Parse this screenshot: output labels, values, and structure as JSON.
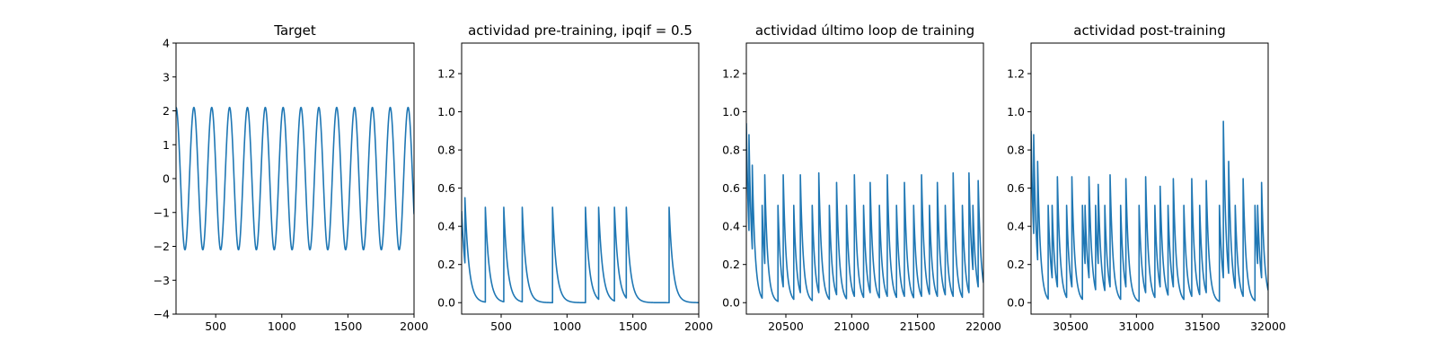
{
  "colors": {
    "series": "#1f77b4",
    "axes": "#000000",
    "background": "#ffffff"
  },
  "chart_data": [
    {
      "type": "line",
      "title": "Target",
      "xlabel": "",
      "ylabel": "",
      "xlim": [
        200,
        2000
      ],
      "ylim": [
        -4,
        4
      ],
      "xticks": [
        500,
        1000,
        1500,
        2000
      ],
      "xticklabels": [
        "500",
        "1000",
        "1500",
        "2000"
      ],
      "yticks": [
        -4,
        -3,
        -2,
        -1,
        0,
        1,
        2,
        3,
        4
      ],
      "yticklabels": [
        "−4",
        "−3",
        "−2",
        "−1",
        "0",
        "1",
        "2",
        "3",
        "4"
      ],
      "grid": false,
      "series": [
        {
          "kind": "sine",
          "amplitude": 2.1,
          "period": 135,
          "x_first_peak": 200,
          "x_start": 200,
          "x_end": 2000
        }
      ]
    },
    {
      "type": "line",
      "title": "actividad pre-training, ipqif = 0.5",
      "xlabel": "",
      "ylabel": "",
      "xlim": [
        200,
        2000
      ],
      "ylim": [
        -0.06,
        1.36
      ],
      "xticks": [
        500,
        1000,
        1500,
        2000
      ],
      "xticklabels": [
        "500",
        "1000",
        "1500",
        "2000"
      ],
      "yticks": [
        0.0,
        0.2,
        0.4,
        0.6,
        0.8,
        1.0,
        1.2
      ],
      "yticklabels": [
        "0.0",
        "0.2",
        "0.4",
        "0.6",
        "0.8",
        "1.0",
        "1.2"
      ],
      "grid": false,
      "series": [
        {
          "kind": "spikes",
          "x_start": 200,
          "x_end": 2000,
          "initial_value": 0.48,
          "decay": 30,
          "spikes": [
            {
              "x": 225,
              "y": 0.55
            },
            {
              "x": 380,
              "y": 0.5
            },
            {
              "x": 520,
              "y": 0.5
            },
            {
              "x": 660,
              "y": 0.5
            },
            {
              "x": 890,
              "y": 0.5
            },
            {
              "x": 1140,
              "y": 0.5
            },
            {
              "x": 1240,
              "y": 0.5
            },
            {
              "x": 1360,
              "y": 0.5
            },
            {
              "x": 1450,
              "y": 0.5
            },
            {
              "x": 1775,
              "y": 0.5
            }
          ]
        }
      ]
    },
    {
      "type": "line",
      "title": "actividad último loop de training",
      "xlabel": "",
      "ylabel": "",
      "xlim": [
        20200,
        22000
      ],
      "ylim": [
        -0.06,
        1.36
      ],
      "xticks": [
        20500,
        21000,
        21500,
        22000
      ],
      "xticklabels": [
        "20500",
        "21000",
        "21500",
        "22000"
      ],
      "yticks": [
        0.0,
        0.2,
        0.4,
        0.6,
        0.8,
        1.0,
        1.2
      ],
      "yticklabels": [
        "0.0",
        "0.2",
        "0.4",
        "0.6",
        "0.8",
        "1.0",
        "1.2"
      ],
      "grid": false,
      "series": [
        {
          "kind": "spikes",
          "x_start": 20200,
          "x_end": 22000,
          "initial_value": 0.94,
          "decay": 22,
          "spikes": [
            {
              "x": 20220,
              "y": 0.88
            },
            {
              "x": 20245,
              "y": 0.72
            },
            {
              "x": 20320,
              "y": 0.51
            },
            {
              "x": 20340,
              "y": 0.67
            },
            {
              "x": 20440,
              "y": 0.51
            },
            {
              "x": 20480,
              "y": 0.67
            },
            {
              "x": 20560,
              "y": 0.51
            },
            {
              "x": 20610,
              "y": 0.67
            },
            {
              "x": 20700,
              "y": 0.51
            },
            {
              "x": 20750,
              "y": 0.68
            },
            {
              "x": 20830,
              "y": 0.51
            },
            {
              "x": 20885,
              "y": 0.63
            },
            {
              "x": 20960,
              "y": 0.51
            },
            {
              "x": 21020,
              "y": 0.67
            },
            {
              "x": 21090,
              "y": 0.51
            },
            {
              "x": 21140,
              "y": 0.63
            },
            {
              "x": 21210,
              "y": 0.51
            },
            {
              "x": 21270,
              "y": 0.67
            },
            {
              "x": 21340,
              "y": 0.51
            },
            {
              "x": 21400,
              "y": 0.63
            },
            {
              "x": 21470,
              "y": 0.51
            },
            {
              "x": 21530,
              "y": 0.67
            },
            {
              "x": 21590,
              "y": 0.51
            },
            {
              "x": 21650,
              "y": 0.63
            },
            {
              "x": 21710,
              "y": 0.51
            },
            {
              "x": 21770,
              "y": 0.68
            },
            {
              "x": 21840,
              "y": 0.51
            },
            {
              "x": 21890,
              "y": 0.68
            },
            {
              "x": 21920,
              "y": 0.51
            },
            {
              "x": 21960,
              "y": 0.64
            }
          ]
        }
      ]
    },
    {
      "type": "line",
      "title": "actividad post-training",
      "xlabel": "",
      "ylabel": "",
      "xlim": [
        30200,
        32000
      ],
      "ylim": [
        -0.06,
        1.36
      ],
      "xticks": [
        30500,
        31000,
        31500,
        32000
      ],
      "xticklabels": [
        "30500",
        "31000",
        "31500",
        "32000"
      ],
      "yticks": [
        0.0,
        0.2,
        0.4,
        0.6,
        0.8,
        1.0,
        1.2
      ],
      "yticklabels": [
        "0.0",
        "0.2",
        "0.4",
        "0.6",
        "0.8",
        "1.0",
        "1.2"
      ],
      "grid": false,
      "series": [
        {
          "kind": "spikes",
          "x_start": 30200,
          "x_end": 32000,
          "initial_value": 0.9,
          "decay": 22,
          "spikes": [
            {
              "x": 30220,
              "y": 0.88
            },
            {
              "x": 30250,
              "y": 0.74
            },
            {
              "x": 30330,
              "y": 0.51
            },
            {
              "x": 30360,
              "y": 0.51
            },
            {
              "x": 30400,
              "y": 0.66
            },
            {
              "x": 30470,
              "y": 0.51
            },
            {
              "x": 30510,
              "y": 0.66
            },
            {
              "x": 30590,
              "y": 0.51
            },
            {
              "x": 30610,
              "y": 0.51
            },
            {
              "x": 30640,
              "y": 0.66
            },
            {
              "x": 30690,
              "y": 0.51
            },
            {
              "x": 30710,
              "y": 0.62
            },
            {
              "x": 30760,
              "y": 0.51
            },
            {
              "x": 30800,
              "y": 0.67
            },
            {
              "x": 30880,
              "y": 0.51
            },
            {
              "x": 30920,
              "y": 0.65
            },
            {
              "x": 31020,
              "y": 0.51
            },
            {
              "x": 31070,
              "y": 0.66
            },
            {
              "x": 31140,
              "y": 0.51
            },
            {
              "x": 31180,
              "y": 0.61
            },
            {
              "x": 31240,
              "y": 0.51
            },
            {
              "x": 31280,
              "y": 0.65
            },
            {
              "x": 31360,
              "y": 0.51
            },
            {
              "x": 31420,
              "y": 0.65
            },
            {
              "x": 31480,
              "y": 0.51
            },
            {
              "x": 31530,
              "y": 0.64
            },
            {
              "x": 31630,
              "y": 0.51
            },
            {
              "x": 31660,
              "y": 0.95
            },
            {
              "x": 31700,
              "y": 0.74
            },
            {
              "x": 31750,
              "y": 0.51
            },
            {
              "x": 31810,
              "y": 0.65
            },
            {
              "x": 31900,
              "y": 0.51
            },
            {
              "x": 31920,
              "y": 0.51
            },
            {
              "x": 31950,
              "y": 0.63
            }
          ]
        }
      ]
    }
  ]
}
